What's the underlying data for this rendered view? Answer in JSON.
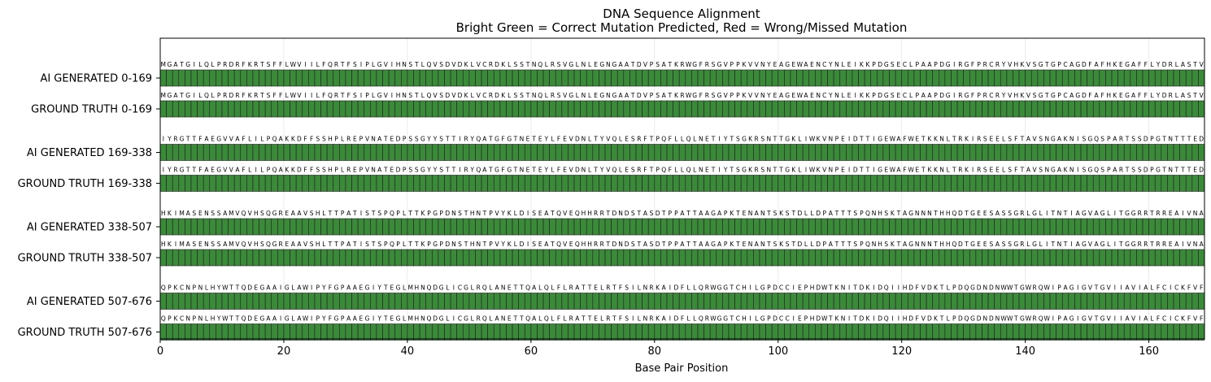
{
  "chart_data": {
    "type": "bar",
    "title": "DNA Sequence Alignment",
    "subtitle": "Bright Green = Correct Mutation Predicted, Red = Wrong/Missed Mutation",
    "xlabel": "Base Pair Position",
    "xlim": [
      0,
      169
    ],
    "xticks": [
      "0",
      "20",
      "40",
      "60",
      "80",
      "100",
      "120",
      "140",
      "160"
    ],
    "grid": "x",
    "colors": {
      "correct": "#3a8a3a",
      "wrong": "#ff0000",
      "edge": "#1f1f1f"
    },
    "groups": [
      {
        "sequence": "MGATGILQLPRDRFKRTSFFLWVIILFQRTFSIPLGVIHNSTLQVSDVDKLVCRDKLSSTNQLRSVGLNLEGNGAATDVPSATKRWGFRSGVPPKVVNYEAGEWAENCYNLEIKKPDGSECLPAAPDGIRGFPRCRYVHKVSGTGPCAGDFAFHKEGAFFLYDRLASTV",
        "rows": [
          {
            "label": "AI GENERATED 0-169",
            "status": "correct"
          },
          {
            "label": "GROUND TRUTH 0-169",
            "status": "correct"
          }
        ]
      },
      {
        "sequence": "IYRGTTFAEGVVAFLILPQAKKDFFSSHPLREPVNATEDPSSGYYSTTIRYQATGFGTNETEYLFEVDNLTYVQLESRFTPQFLLQLNETIYTSGKRSNTTGKLIWKVNPEIDTTIGEWAFWETKKNLTRKIRSEELSFTAVSNGAKNISGQSPARTSSDPGTNTTTED",
        "rows": [
          {
            "label": "AI GENERATED 169-338",
            "status": "correct"
          },
          {
            "label": "GROUND TRUTH 169-338",
            "status": "correct"
          }
        ]
      },
      {
        "sequence": "HKIMASENSSAMVQVHSQGREAAVSHLTTPATISTSPQPLTTKPGPDNSTHNTPVYKLDISEATQVEQHHRRTDNDSTASDTPPATTAAGAPKTENANTSKSTDLLDPATTTSPQNHSKTAGNNNTHHQDTGEESASSGRLGLITNTIAGVAGLITGGRRTRREAIVNA",
        "rows": [
          {
            "label": "AI GENERATED 338-507",
            "status": "correct"
          },
          {
            "label": "GROUND TRUTH 338-507",
            "status": "correct"
          }
        ]
      },
      {
        "sequence": "QPKCNPNLHYWTTQDEGAAIGLAWIPYFGPAAEGIYTEGLMHNQDGLICGLRQLANETTQALQLFLRATTELRTFSILNRKAIDFLLQRWGGTCHILGPDCCIEPHDWTKNITDKIDQIIHDFVDKTLPDQGDNDNWWTGWRQWIPAGIGVTGVIIAVIALFCICKFVF",
        "rows": [
          {
            "label": "AI GENERATED 507-676",
            "status": "correct"
          },
          {
            "label": "GROUND TRUTH 507-676",
            "status": "correct"
          }
        ]
      }
    ]
  }
}
